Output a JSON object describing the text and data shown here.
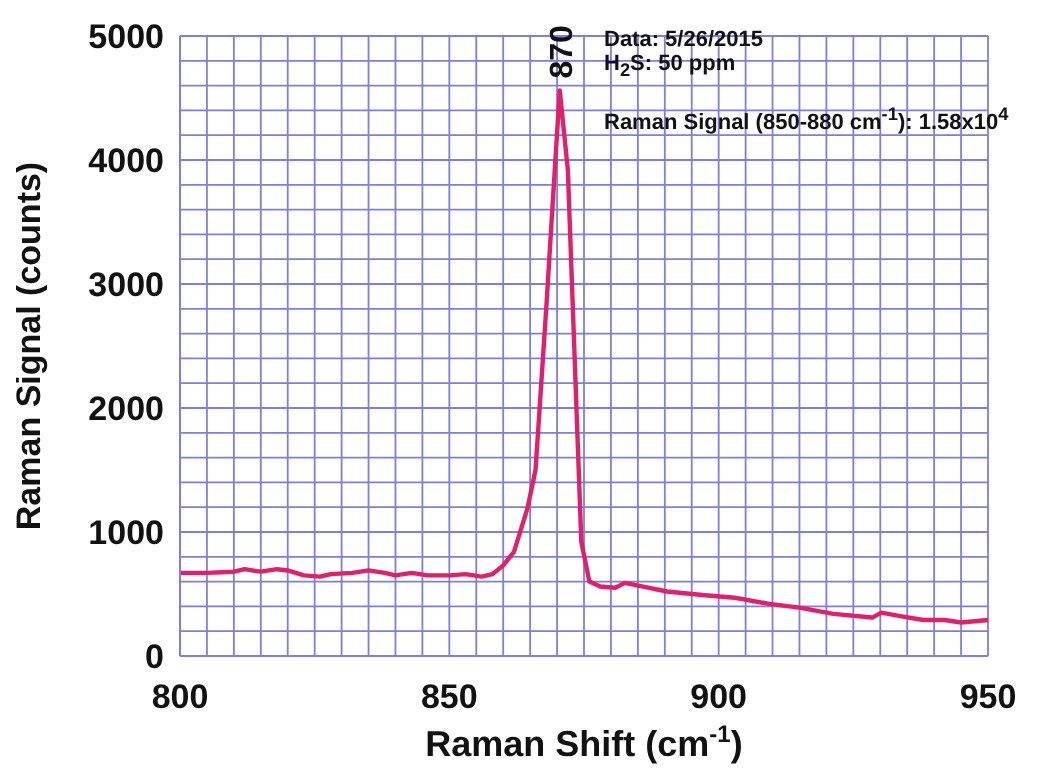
{
  "chart_data": {
    "type": "line",
    "xlabel": "Raman Shift (cm$^{-1}$)",
    "ylabel": "Raman Signal (counts)",
    "x": [
      800,
      805,
      810,
      812,
      815,
      818,
      820,
      823,
      826,
      828,
      832,
      835,
      838,
      840,
      843,
      846,
      850,
      853,
      856,
      858,
      860,
      862,
      864.5,
      866,
      868,
      869.5,
      870.5,
      872,
      874.5,
      876,
      878,
      880.8,
      882.6,
      886,
      890.4,
      897.5,
      903,
      909.4,
      915,
      921.3,
      928.5,
      930.2,
      934,
      938,
      942,
      945,
      950
    ],
    "series": [
      {
        "color": "#e0206a",
        "values": [
          670,
          670,
          680,
          700,
          680,
          700,
          690,
          650,
          640,
          660,
          670,
          690,
          670,
          650,
          670,
          650,
          650,
          660,
          640,
          660,
          730,
          840,
          1190,
          1500,
          2810,
          3870,
          4560,
          3920,
          920,
          600,
          560,
          550,
          590,
          560,
          520,
          490,
          470,
          420,
          390,
          340,
          310,
          350,
          320,
          290,
          290,
          270,
          290
        ]
      }
    ],
    "xlim": [
      800,
      950
    ],
    "ylim": [
      0,
      5000
    ],
    "xticks": [
      800,
      {
        "value": 805,
        "label": null
      },
      {
        "value": 810,
        "label": null
      },
      {
        "value": 815,
        "label": null
      },
      {
        "value": 820,
        "label": null
      },
      {
        "value": 825,
        "label": null
      },
      {
        "value": 830,
        "label": null
      },
      {
        "value": 835,
        "label": null
      },
      {
        "value": 840,
        "label": null
      },
      {
        "value": 845,
        "label": null
      },
      850,
      {
        "value": 855,
        "label": null
      },
      {
        "value": 860,
        "label": null
      },
      {
        "value": 865,
        "label": null
      },
      {
        "value": 870,
        "label": null
      },
      {
        "value": 875,
        "label": null
      },
      {
        "value": 880,
        "label": null
      },
      {
        "value": 885,
        "label": null
      },
      {
        "value": 890,
        "label": null
      },
      {
        "value": 895,
        "label": null
      },
      900,
      {
        "value": 905,
        "label": null
      },
      {
        "value": 910,
        "label": null
      },
      {
        "value": 915,
        "label": null
      },
      {
        "value": 920,
        "label": null
      },
      {
        "value": 925,
        "label": null
      },
      {
        "value": 930,
        "label": null
      },
      {
        "value": 935,
        "label": null
      },
      {
        "value": 940,
        "label": null
      },
      {
        "value": 945,
        "label": null
      },
      950
    ],
    "yticks": [
      0,
      {
        "value": 200,
        "label": null
      },
      {
        "value": 400,
        "label": null
      },
      {
        "value": 600,
        "label": null
      },
      {
        "value": 800,
        "label": null
      },
      1000,
      {
        "value": 1200,
        "label": null
      },
      {
        "value": 1400,
        "label": null
      },
      {
        "value": 1600,
        "label": null
      },
      {
        "value": 1800,
        "label": null
      },
      2000,
      {
        "value": 2200,
        "label": null
      },
      {
        "value": 2400,
        "label": null
      },
      {
        "value": 2600,
        "label": null
      },
      {
        "value": 2800,
        "label": null
      },
      3000,
      {
        "value": 3200,
        "label": null
      },
      {
        "value": 3400,
        "label": null
      },
      {
        "value": 3600,
        "label": null
      },
      {
        "value": 3800,
        "label": null
      },
      4000,
      {
        "value": 4200,
        "label": null
      },
      {
        "value": 4400,
        "label": null
      },
      {
        "value": 4600,
        "label": null
      },
      {
        "value": 4800,
        "label": null
      },
      5000
    ],
    "grid": true,
    "annotations": [
      {
        "text": "870",
        "x": 870.5,
        "y": 4560
      },
      "Data: 5/26/2015",
      "H$_{2}$S: 50 ppm",
      "Raman Signal (850-880 cm$^{-1}$): 1.58x10$^{4}$"
    ]
  }
}
